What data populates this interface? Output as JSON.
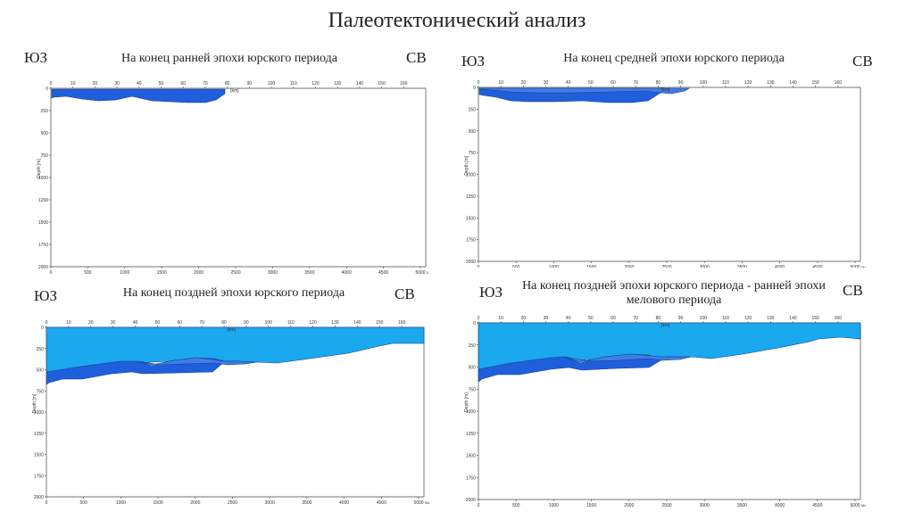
{
  "page_title": "Палеотектонический анализ",
  "colors": {
    "water": "#1aa8ee",
    "layer_dark": "#1f5fdc",
    "layer_mid": "#3e7fe6",
    "outline": "#1a3a8a",
    "axis": "#444444"
  },
  "panels": [
    {
      "id": "p1",
      "title": "На конец ранней эпохи юрского периода",
      "left_dir": "ЮЗ",
      "right_dir": "СВ",
      "top_unit": "[km]",
      "left_unit": "Depth [m]",
      "bottom_unit": "Ms",
      "top_ticks": [
        "0",
        "10",
        "20",
        "30",
        "40",
        "50",
        "60",
        "70",
        "80",
        "90",
        "100",
        "110",
        "120",
        "130",
        "140",
        "150",
        "160"
      ],
      "left_ticks": [
        "0",
        "250",
        "500",
        "750",
        "1000",
        "1250",
        "1500",
        "1750",
        "2000"
      ],
      "bottom_ticks": [
        "0",
        "500",
        "1000",
        "1500",
        "2000",
        "2500",
        "3000",
        "3500",
        "4000",
        "4500",
        "5000"
      ]
    },
    {
      "id": "p2",
      "title": "На конец средней эпохи юрского периода",
      "left_dir": "ЮЗ",
      "right_dir": "СВ",
      "top_unit": "[km]",
      "left_unit": "Depth [m]",
      "bottom_unit": "Ms",
      "top_ticks": [
        "0",
        "10",
        "20",
        "30",
        "40",
        "50",
        "60",
        "70",
        "80",
        "90",
        "100",
        "110",
        "120",
        "130",
        "140",
        "150",
        "160"
      ],
      "left_ticks": [
        "0",
        "250",
        "500",
        "750",
        "1000",
        "1250",
        "1500",
        "1750",
        "2000"
      ],
      "bottom_ticks": [
        "0",
        "500",
        "1000",
        "1500",
        "2000",
        "2500",
        "3000",
        "3500",
        "4000",
        "4500",
        "5000"
      ]
    },
    {
      "id": "p3",
      "title": "На конец поздней эпохи юрского периода",
      "left_dir": "ЮЗ",
      "right_dir": "СВ",
      "top_unit": "[km]",
      "left_unit": "Depth [m]",
      "bottom_unit": "Ms",
      "top_ticks": [
        "0",
        "10",
        "20",
        "30",
        "40",
        "50",
        "60",
        "70",
        "80",
        "90",
        "100",
        "110",
        "120",
        "130",
        "140",
        "150",
        "160"
      ],
      "left_ticks": [
        "0",
        "250",
        "500",
        "750",
        "1000",
        "1250",
        "1500",
        "1750",
        "2000"
      ],
      "bottom_ticks": [
        "0",
        "500",
        "1000",
        "1500",
        "2000",
        "2500",
        "3000",
        "3500",
        "4000",
        "4500",
        "5000"
      ]
    },
    {
      "id": "p4",
      "title": "На конец поздней эпохи юрского периода - ранней эпохи мелового периода",
      "left_dir": "ЮЗ",
      "right_dir": "СВ",
      "top_unit": "[km]",
      "left_unit": "Depth [m]",
      "bottom_unit": "Ms",
      "top_ticks": [
        "0",
        "10",
        "20",
        "30",
        "40",
        "50",
        "60",
        "70",
        "80",
        "90",
        "100",
        "110",
        "120",
        "130",
        "140",
        "150",
        "160"
      ],
      "left_ticks": [
        "0",
        "250",
        "500",
        "750",
        "1000",
        "1250",
        "1500",
        "1750",
        "2000"
      ],
      "bottom_ticks": [
        "0",
        "500",
        "1000",
        "1500",
        "2000",
        "2500",
        "3000",
        "3500",
        "4000",
        "4500",
        "5000"
      ]
    }
  ]
}
